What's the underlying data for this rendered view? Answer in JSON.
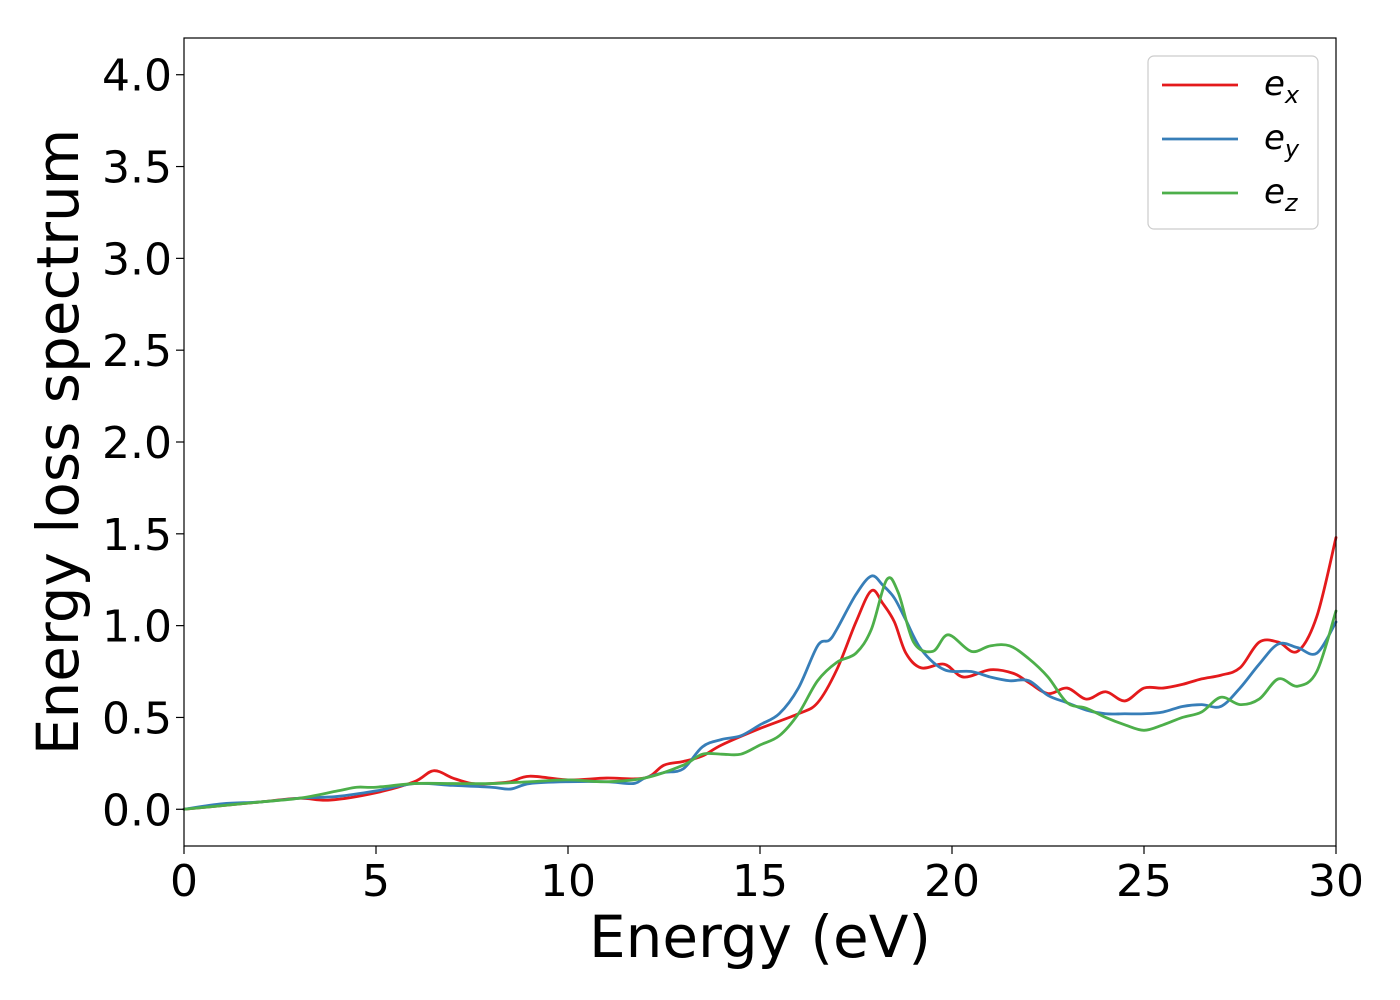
{
  "chart_data": {
    "type": "line",
    "title": "",
    "xlabel": "Energy (eV)",
    "ylabel": "Energy loss spectrum",
    "xlim": [
      0,
      30
    ],
    "ylim": [
      -0.2,
      4.2
    ],
    "xticks": [
      "0",
      "5",
      "10",
      "15",
      "20",
      "25",
      "30"
    ],
    "yticks": [
      "0.0",
      "0.5",
      "1.0",
      "1.5",
      "2.0",
      "2.5",
      "3.0",
      "3.5",
      "4.0"
    ],
    "grid": false,
    "legend_position": "top-right",
    "series": [
      {
        "name": "e",
        "subscript": "x",
        "color": "#e41a1c",
        "x": [
          0,
          1,
          2,
          3,
          3.8,
          5,
          6,
          6.5,
          7,
          7.5,
          8,
          8.5,
          9,
          10,
          11,
          12,
          12.5,
          13,
          13.5,
          14,
          15,
          16,
          16.5,
          17,
          17.5,
          17.9,
          18.2,
          18.5,
          18.8,
          19.2,
          19.8,
          20.3,
          21,
          21.6,
          22,
          22.5,
          23,
          23.5,
          24,
          24.5,
          25,
          25.5,
          26,
          26.5,
          27,
          27.5,
          28,
          28.5,
          29,
          29.5,
          30
        ],
        "y": [
          0,
          0.02,
          0.04,
          0.06,
          0.05,
          0.09,
          0.15,
          0.21,
          0.17,
          0.14,
          0.14,
          0.15,
          0.18,
          0.16,
          0.17,
          0.17,
          0.24,
          0.26,
          0.29,
          0.35,
          0.44,
          0.52,
          0.58,
          0.76,
          1.02,
          1.19,
          1.12,
          1.02,
          0.85,
          0.77,
          0.79,
          0.72,
          0.76,
          0.74,
          0.69,
          0.63,
          0.66,
          0.6,
          0.64,
          0.59,
          0.66,
          0.66,
          0.68,
          0.71,
          0.73,
          0.77,
          0.91,
          0.91,
          0.86,
          1.05,
          1.48
        ]
      },
      {
        "name": "e",
        "subscript": "y",
        "color": "#377eb8",
        "x": [
          0,
          1,
          2,
          3,
          4,
          5,
          6,
          7,
          8,
          8.5,
          9,
          10,
          11,
          11.7,
          12,
          12.5,
          13,
          13.5,
          14,
          14.5,
          15,
          15.5,
          16,
          16.5,
          16.8,
          17,
          17.5,
          17.9,
          18.2,
          18.5,
          18.8,
          19.2,
          19.8,
          20.5,
          21,
          21.5,
          22,
          22.5,
          23,
          23.5,
          24,
          24.5,
          25,
          25.5,
          26,
          26.5,
          27,
          27.5,
          28,
          28.5,
          29,
          29.5,
          30
        ],
        "y": [
          0,
          0.03,
          0.04,
          0.06,
          0.07,
          0.1,
          0.14,
          0.13,
          0.12,
          0.11,
          0.14,
          0.15,
          0.15,
          0.14,
          0.17,
          0.2,
          0.22,
          0.34,
          0.38,
          0.4,
          0.46,
          0.52,
          0.66,
          0.89,
          0.92,
          0.98,
          1.17,
          1.27,
          1.22,
          1.15,
          1.03,
          0.87,
          0.76,
          0.75,
          0.72,
          0.7,
          0.7,
          0.62,
          0.58,
          0.54,
          0.52,
          0.52,
          0.52,
          0.53,
          0.56,
          0.57,
          0.56,
          0.66,
          0.79,
          0.9,
          0.88,
          0.85,
          1.02
        ]
      },
      {
        "name": "e",
        "subscript": "z",
        "color": "#4daf4a",
        "x": [
          0,
          1,
          2,
          3,
          4,
          4.5,
          5,
          6,
          7,
          8,
          9,
          10,
          11,
          12,
          13,
          13.5,
          14,
          14.5,
          15,
          15.5,
          16,
          16.5,
          17,
          17.5,
          17.9,
          18.3,
          18.6,
          19,
          19.5,
          19.9,
          20.5,
          21,
          21.5,
          22,
          22.5,
          23,
          23.5,
          24,
          24.5,
          25,
          25.5,
          26,
          26.5,
          27,
          27.5,
          28,
          28.5,
          29,
          29.5,
          30
        ],
        "y": [
          0,
          0.02,
          0.04,
          0.06,
          0.1,
          0.12,
          0.12,
          0.14,
          0.14,
          0.14,
          0.15,
          0.16,
          0.15,
          0.17,
          0.24,
          0.3,
          0.3,
          0.3,
          0.35,
          0.4,
          0.52,
          0.7,
          0.8,
          0.85,
          0.98,
          1.25,
          1.18,
          0.91,
          0.86,
          0.95,
          0.86,
          0.89,
          0.89,
          0.82,
          0.72,
          0.58,
          0.55,
          0.5,
          0.46,
          0.43,
          0.46,
          0.5,
          0.53,
          0.61,
          0.57,
          0.6,
          0.71,
          0.67,
          0.75,
          1.08
        ]
      }
    ]
  }
}
